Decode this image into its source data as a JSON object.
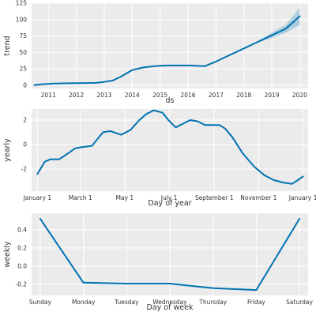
{
  "colors": {
    "line": "#0072b2",
    "band": "#0072b2",
    "panel": "#ebebeb",
    "grid": "#ffffff"
  },
  "chart_data": [
    {
      "type": "line",
      "title": "",
      "xlabel": "ds",
      "ylabel": "trend",
      "grid": true,
      "xlim": [
        2010.4,
        2020.3
      ],
      "ylim": [
        -5,
        125
      ],
      "x_ticks": [
        2011,
        2012,
        2013,
        2014,
        2015,
        2016,
        2017,
        2018,
        2019,
        2020
      ],
      "x_tick_labels": [
        "2011",
        "2012",
        "2013",
        "2014",
        "2015",
        "2016",
        "2017",
        "2018",
        "2019",
        "2020"
      ],
      "y_ticks": [
        0,
        25,
        50,
        75,
        100,
        125
      ],
      "y_tick_labels": [
        "0",
        "25",
        "50",
        "75",
        "100",
        "125"
      ],
      "series": [
        {
          "x": [
            2010.5,
            2010.8,
            2011.2,
            2011.7,
            2012.3,
            2012.7,
            2013.0,
            2013.3,
            2013.6,
            2014.0,
            2014.4,
            2014.8,
            2015.2,
            2015.7,
            2016.1,
            2016.6,
            2017.0,
            2017.5,
            2018.0,
            2018.5,
            2019.0,
            2019.5,
            2020.0
          ],
          "y": [
            0,
            1.5,
            2.5,
            3,
            3.3,
            3.5,
            5,
            7,
            13,
            23,
            27,
            29,
            30,
            30,
            30,
            29,
            36,
            46,
            56,
            66,
            76,
            86,
            105
          ],
          "band_x": [
            2018.5,
            2019.0,
            2019.5,
            2020.0
          ],
          "band_lower": [
            65,
            72,
            80,
            92
          ],
          "band_upper": [
            67,
            80,
            92,
            118
          ]
        }
      ]
    },
    {
      "type": "line",
      "title": "",
      "xlabel": "Day of year",
      "ylabel": "yearly",
      "grid": true,
      "xlim": [
        -8,
        372
      ],
      "ylim": [
        -3.8,
        2.9
      ],
      "x_ticks": [
        0,
        59,
        120,
        181,
        243,
        304,
        365
      ],
      "x_tick_labels": [
        "January 1",
        "March 1",
        "May 1",
        "July 1",
        "September 1",
        "November 1",
        "January 1"
      ],
      "y_ticks": [
        -2,
        0,
        2
      ],
      "y_tick_labels": [
        "-2",
        "0",
        "2"
      ],
      "series": [
        {
          "x": [
            0,
            10,
            18,
            30,
            40,
            52,
            62,
            75,
            90,
            100,
            115,
            128,
            140,
            150,
            160,
            172,
            180,
            190,
            200,
            210,
            220,
            230,
            243,
            250,
            258,
            268,
            282,
            298,
            312,
            325,
            338,
            350,
            358,
            365
          ],
          "y": [
            -2.4,
            -1.4,
            -1.2,
            -1.2,
            -0.8,
            -0.3,
            -0.2,
            -0.1,
            1.0,
            1.1,
            0.8,
            1.2,
            2.0,
            2.5,
            2.8,
            2.6,
            2.0,
            1.4,
            1.7,
            2.0,
            1.9,
            1.6,
            1.6,
            1.6,
            1.3,
            0.6,
            -0.7,
            -1.8,
            -2.5,
            -2.9,
            -3.1,
            -3.2,
            -2.9,
            -2.6
          ]
        }
      ]
    },
    {
      "type": "line",
      "title": "",
      "xlabel": "Day of week",
      "ylabel": "weekly",
      "grid": true,
      "xlim": [
        -0.2,
        6.2
      ],
      "ylim": [
        -0.32,
        0.58
      ],
      "x_ticks": [
        0,
        1,
        2,
        3,
        4,
        5,
        6
      ],
      "x_tick_labels": [
        "Sunday",
        "Monday",
        "Tuesday",
        "Wednesday",
        "Thursday",
        "Friday",
        "Saturday"
      ],
      "y_ticks": [
        -0.2,
        0.0,
        0.2,
        0.4
      ],
      "y_tick_labels": [
        "-0.2",
        "0.0",
        "0.2",
        "0.4"
      ],
      "series": [
        {
          "x": [
            0,
            1,
            2,
            3,
            4,
            5,
            6
          ],
          "y": [
            0.52,
            -0.18,
            -0.19,
            -0.19,
            -0.24,
            -0.26,
            0.52
          ]
        }
      ]
    }
  ]
}
